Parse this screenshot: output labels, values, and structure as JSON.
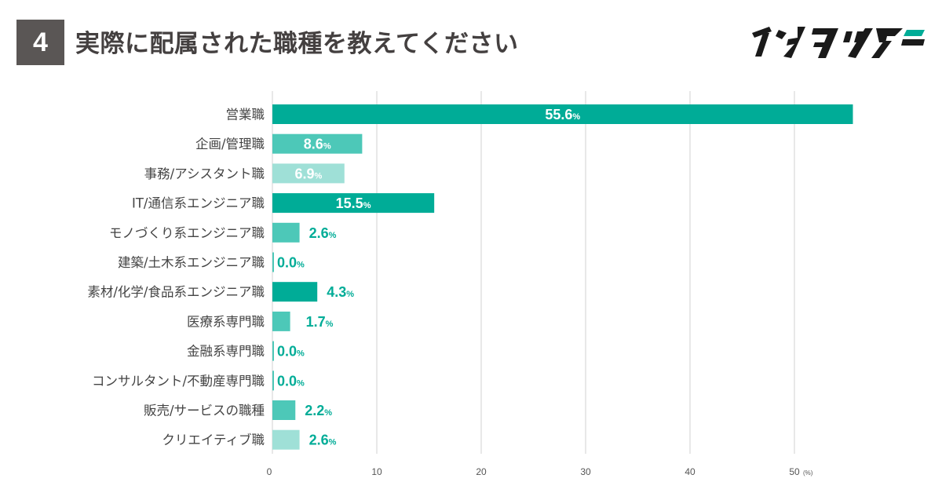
{
  "header": {
    "number": "4",
    "title": "実際に配属された職種を教えてください"
  },
  "brand": {
    "logo_text": "インタツアー"
  },
  "colors": {
    "dark": "#00ac97",
    "medium": "#4dc8b8",
    "light": "#9fe0d7",
    "grid": "#d0d0d0",
    "badge": "#5a5655"
  },
  "chart_data": {
    "type": "bar",
    "orientation": "horizontal",
    "title": "",
    "xlabel": "",
    "ylabel": "",
    "unit": "(%)",
    "value_suffix": "%",
    "xlim": [
      0,
      55.6
    ],
    "xticks": [
      0,
      10,
      20,
      30,
      40,
      50
    ],
    "grid": true,
    "categories": [
      "営業職",
      "企画/管理職",
      "事務/アシスタント職",
      "IT/通信系エンジニア職",
      "モノづくり系エンジニア職",
      "建築/土木系エンジニア職",
      "素材/化学/食品系エンジニア職",
      "医療系専門職",
      "金融系専門職",
      "コンサルタント/不動産専門職",
      "販売/サービスの職種",
      "クリエイティブ職"
    ],
    "values": [
      55.6,
      8.6,
      6.9,
      15.5,
      2.6,
      0.0,
      4.3,
      1.7,
      0.0,
      0.0,
      2.2,
      2.6
    ],
    "value_labels": [
      "55.6",
      "8.6",
      "6.9",
      "15.5",
      "2.6",
      "0.0",
      "4.3",
      "1.7",
      "0.0",
      "0.0",
      "2.2",
      "2.6"
    ],
    "bar_colors": [
      "dark",
      "medium",
      "light",
      "dark",
      "medium",
      "medium",
      "dark",
      "medium",
      "medium",
      "medium",
      "medium",
      "light"
    ]
  }
}
